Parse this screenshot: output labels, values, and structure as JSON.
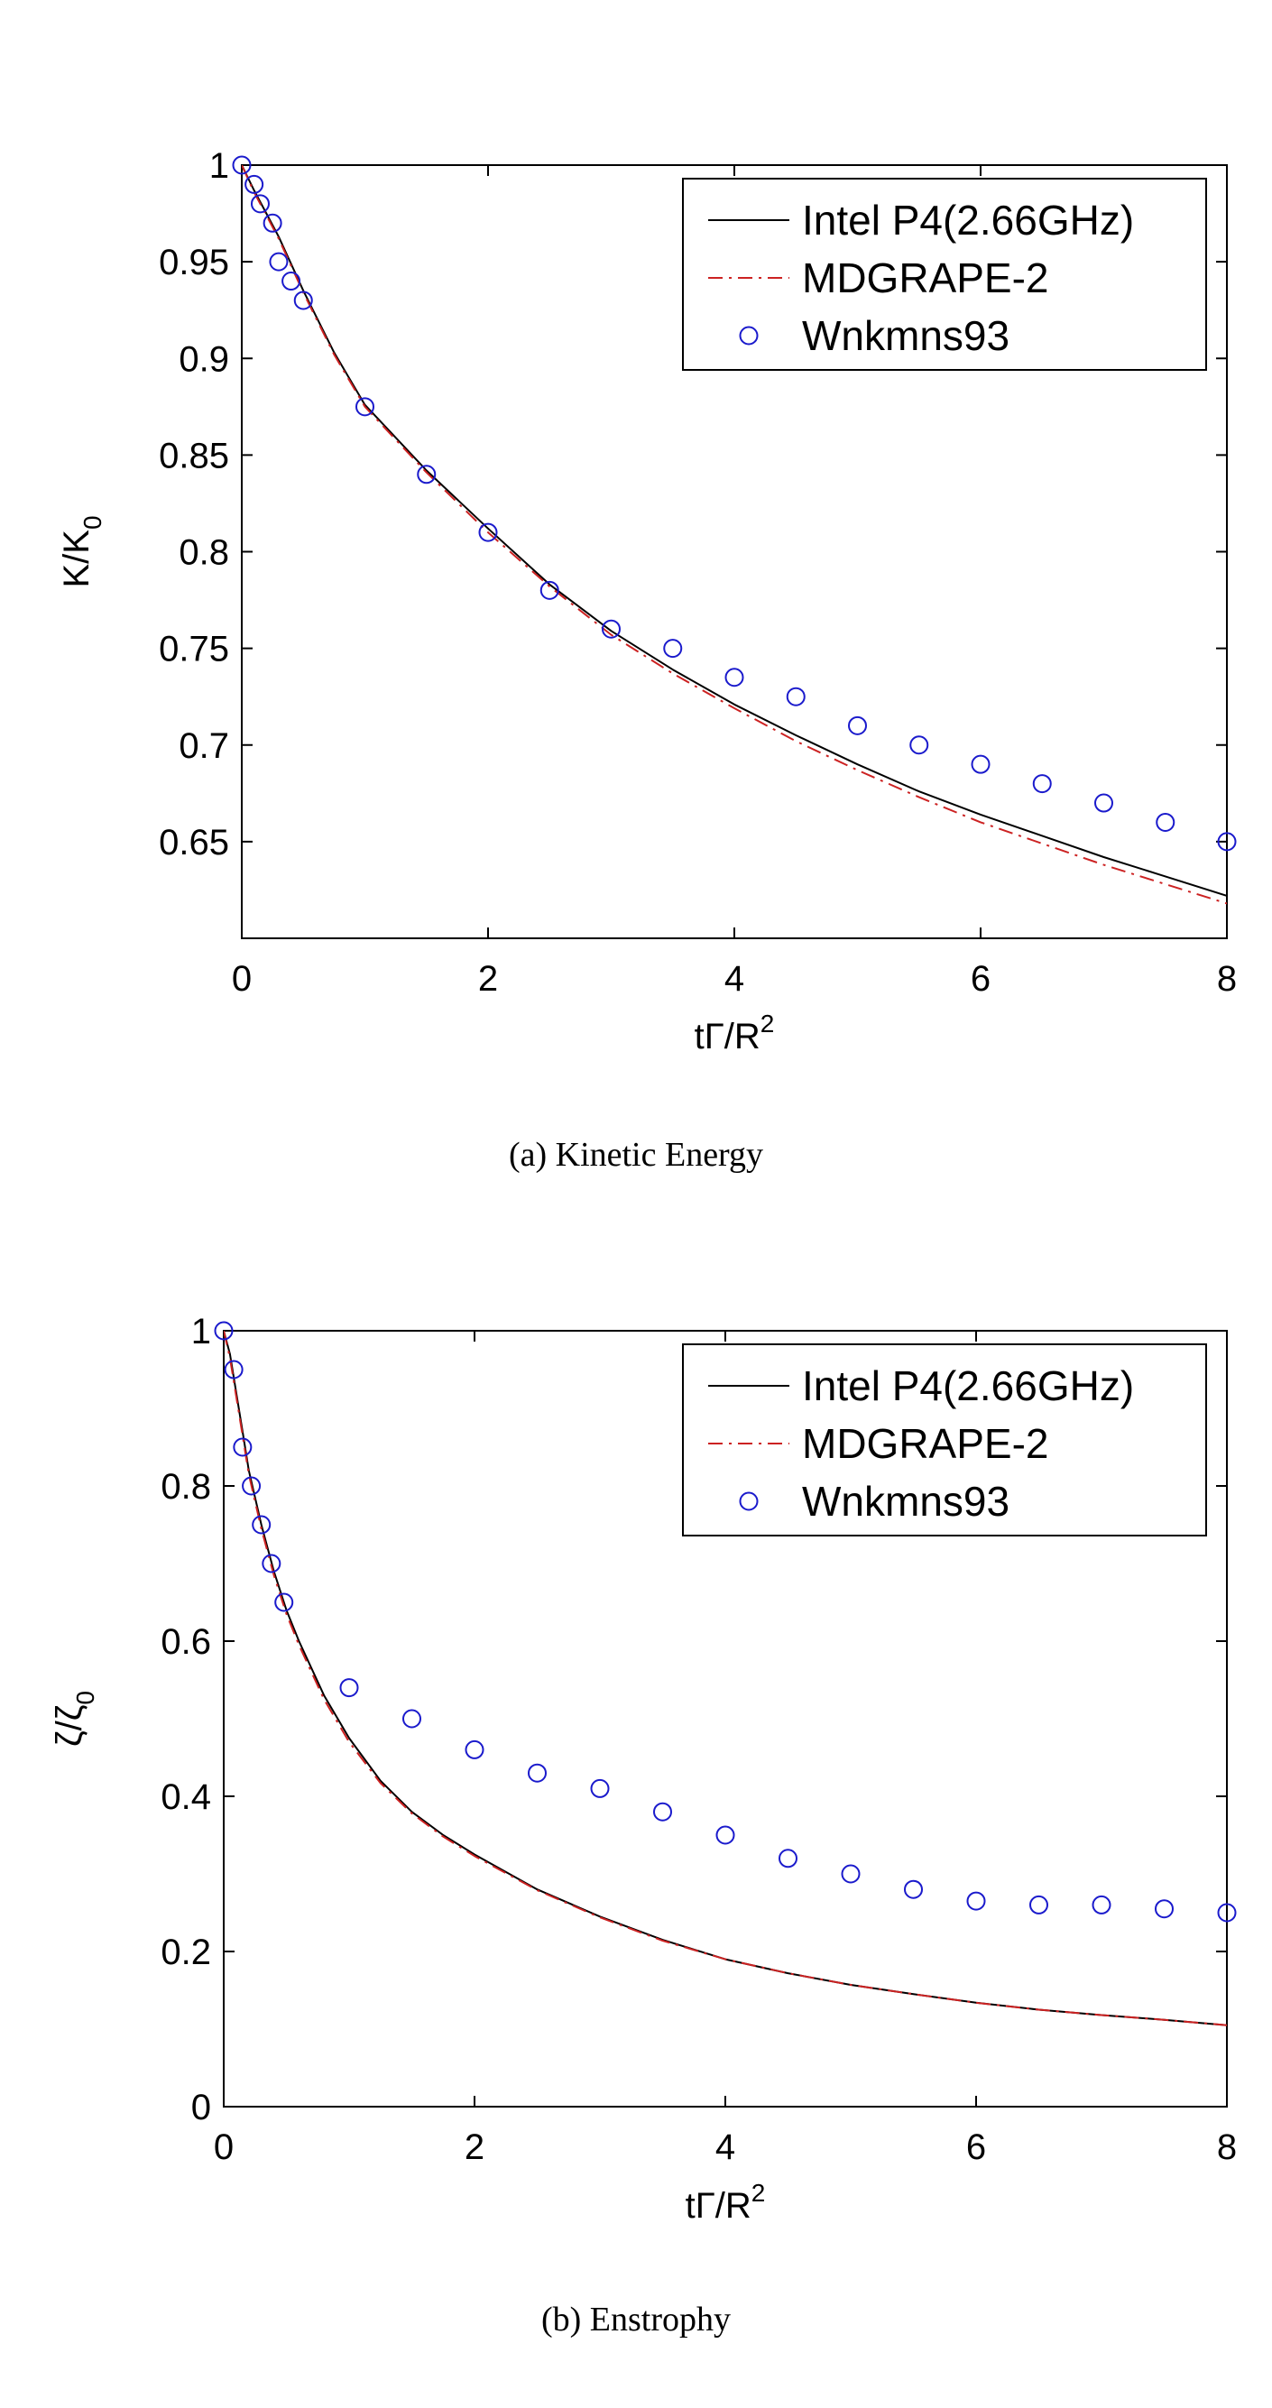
{
  "chart_data": [
    {
      "type": "line",
      "caption": "(a) Kinetic Energy",
      "xlabel": "tΓ/R",
      "xlabel_sup": "2",
      "ylabel": "K/K",
      "ylabel_sub": "0",
      "xlim": [
        0,
        8
      ],
      "ylim": [
        0.6,
        1.0
      ],
      "xticks": [
        0,
        2,
        4,
        6,
        8
      ],
      "yticks": [
        0.65,
        0.7,
        0.75,
        0.8,
        0.85,
        0.9,
        0.95,
        1
      ],
      "ytick_labels": [
        "0.65",
        "0.7",
        "0.75",
        "0.8",
        "0.85",
        "0.9",
        "0.95",
        "1"
      ],
      "grid": false,
      "legend_position": "top-right",
      "series": [
        {
          "name": "Intel P4(2.66GHz)",
          "style": "solid",
          "color": "#000000",
          "x": [
            0,
            0.1,
            0.2,
            0.3,
            0.5,
            0.75,
            1.0,
            1.5,
            2.0,
            2.5,
            3.0,
            3.5,
            4.0,
            4.5,
            5.0,
            5.5,
            6.0,
            6.5,
            7.0,
            7.5,
            8.0
          ],
          "y": [
            1.0,
            0.987,
            0.975,
            0.963,
            0.935,
            0.903,
            0.876,
            0.842,
            0.812,
            0.783,
            0.759,
            0.739,
            0.721,
            0.705,
            0.69,
            0.676,
            0.664,
            0.653,
            0.642,
            0.632,
            0.622
          ]
        },
        {
          "name": "MDGRAPE-2",
          "style": "dashdot",
          "color": "#cc2222",
          "x": [
            0,
            0.1,
            0.2,
            0.3,
            0.5,
            0.75,
            1.0,
            1.5,
            2.0,
            2.5,
            3.0,
            3.5,
            4.0,
            4.5,
            5.0,
            5.5,
            6.0,
            6.5,
            7.0,
            7.5,
            8.0
          ],
          "y": [
            1.0,
            0.986,
            0.974,
            0.962,
            0.934,
            0.902,
            0.875,
            0.841,
            0.81,
            0.782,
            0.757,
            0.737,
            0.719,
            0.702,
            0.687,
            0.673,
            0.66,
            0.649,
            0.638,
            0.628,
            0.618
          ]
        },
        {
          "name": "Wnkmns93",
          "style": "circles",
          "color": "#1a1acc",
          "x": [
            0,
            0.1,
            0.15,
            0.25,
            0.3,
            0.4,
            0.5,
            1.0,
            1.5,
            2.0,
            2.5,
            3.0,
            3.5,
            4.0,
            4.5,
            5.0,
            5.5,
            6.0,
            6.5,
            7.0,
            7.5,
            8.0
          ],
          "y": [
            1.0,
            0.99,
            0.98,
            0.97,
            0.95,
            0.94,
            0.93,
            0.875,
            0.84,
            0.81,
            0.78,
            0.76,
            0.75,
            0.735,
            0.725,
            0.71,
            0.7,
            0.69,
            0.68,
            0.67,
            0.66,
            0.65
          ]
        }
      ]
    },
    {
      "type": "line",
      "caption": "(b) Enstrophy",
      "xlabel": "tΓ/R",
      "xlabel_sup": "2",
      "ylabel": "ζ/ζ",
      "ylabel_sub": "0",
      "xlim": [
        0,
        8
      ],
      "ylim": [
        0,
        1.0
      ],
      "xticks": [
        0,
        2,
        4,
        6,
        8
      ],
      "yticks": [
        0,
        0.2,
        0.4,
        0.6,
        0.8,
        1
      ],
      "ytick_labels": [
        "0",
        "0.2",
        "0.4",
        "0.6",
        "0.8",
        "1"
      ],
      "grid": false,
      "legend_position": "top-right",
      "series": [
        {
          "name": "Intel P4(2.66GHz)",
          "style": "solid",
          "color": "#000000",
          "x": [
            0,
            0.05,
            0.1,
            0.15,
            0.2,
            0.3,
            0.4,
            0.5,
            0.6,
            0.8,
            1.0,
            1.25,
            1.5,
            1.75,
            2.0,
            2.5,
            3.0,
            3.5,
            4.0,
            4.5,
            5.0,
            5.5,
            6.0,
            6.5,
            7.0,
            7.5,
            8.0
          ],
          "y": [
            1.0,
            0.97,
            0.92,
            0.87,
            0.82,
            0.75,
            0.69,
            0.64,
            0.6,
            0.53,
            0.475,
            0.42,
            0.38,
            0.35,
            0.325,
            0.28,
            0.245,
            0.215,
            0.19,
            0.172,
            0.157,
            0.145,
            0.134,
            0.125,
            0.118,
            0.112,
            0.105
          ]
        },
        {
          "name": "MDGRAPE-2",
          "style": "dashdot",
          "color": "#cc2222",
          "x": [
            0,
            0.05,
            0.1,
            0.15,
            0.2,
            0.3,
            0.4,
            0.5,
            0.6,
            0.8,
            1.0,
            1.25,
            1.5,
            1.75,
            2.0,
            2.5,
            3.0,
            3.5,
            4.0,
            4.5,
            5.0,
            5.5,
            6.0,
            6.5,
            7.0,
            7.5,
            8.0
          ],
          "y": [
            1.0,
            0.965,
            0.915,
            0.865,
            0.815,
            0.745,
            0.685,
            0.635,
            0.595,
            0.525,
            0.47,
            0.417,
            0.378,
            0.348,
            0.323,
            0.279,
            0.244,
            0.214,
            0.19,
            0.172,
            0.157,
            0.145,
            0.134,
            0.125,
            0.118,
            0.112,
            0.105
          ]
        },
        {
          "name": "Wnkmns93",
          "style": "circles",
          "color": "#1a1acc",
          "x": [
            0,
            0.08,
            0.15,
            0.22,
            0.3,
            0.38,
            0.48,
            1.0,
            1.5,
            2.0,
            2.5,
            3.0,
            3.5,
            4.0,
            4.5,
            5.0,
            5.5,
            6.0,
            6.5,
            7.0,
            7.5,
            8.0
          ],
          "y": [
            1.0,
            0.95,
            0.85,
            0.8,
            0.75,
            0.7,
            0.65,
            0.54,
            0.5,
            0.46,
            0.43,
            0.41,
            0.38,
            0.35,
            0.32,
            0.3,
            0.28,
            0.265,
            0.26,
            0.26,
            0.255,
            0.25
          ]
        }
      ]
    }
  ]
}
